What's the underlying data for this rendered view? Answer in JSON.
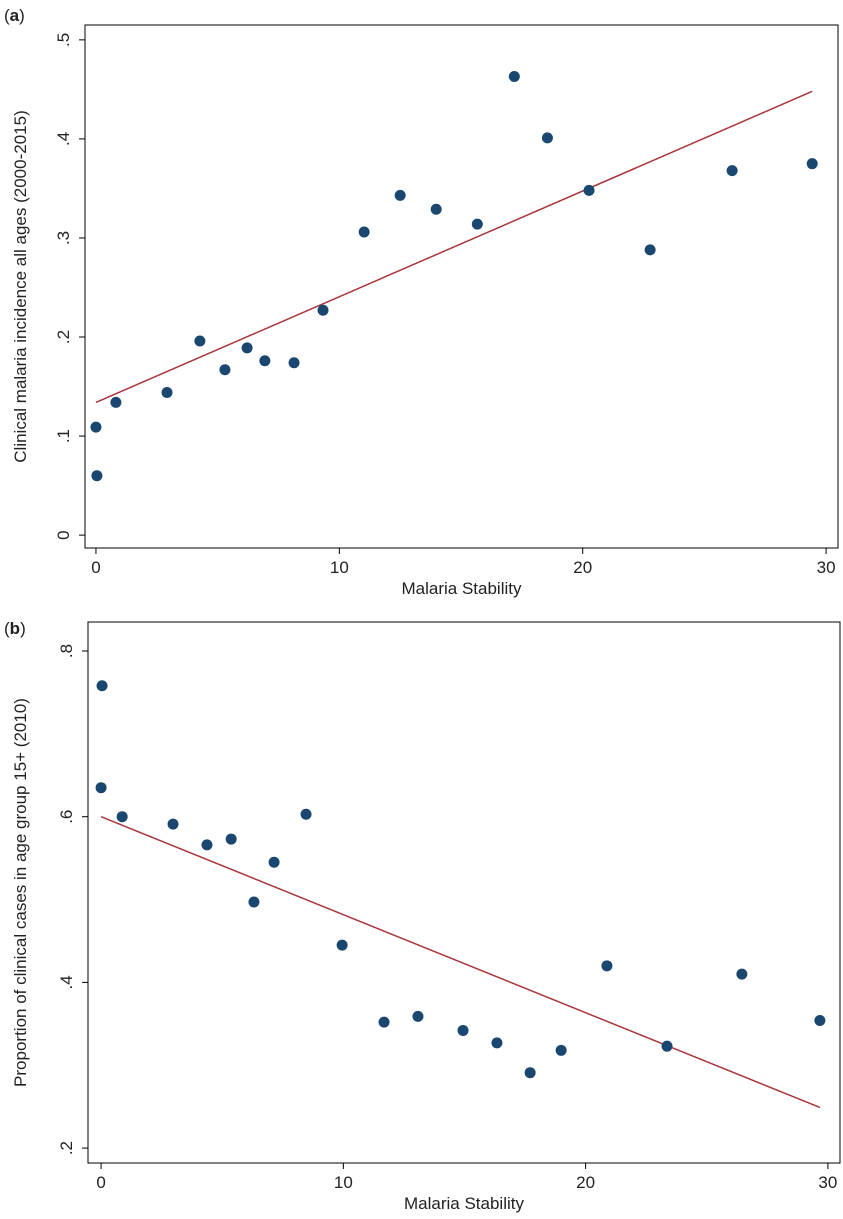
{
  "chart_data": [
    {
      "type": "scatter",
      "panel_label": "(a)",
      "x_label": "Malaria Stability",
      "y_label": "Clinical malaria incidence all ages (2000-2015)",
      "x": [
        0,
        0.04,
        0.82,
        2.92,
        4.27,
        5.3,
        6.21,
        6.94,
        8.14,
        9.33,
        11.02,
        12.5,
        13.98,
        15.67,
        17.19,
        18.55,
        20.26,
        22.77,
        26.14,
        29.43
      ],
      "y": [
        0.109,
        0.06,
        0.134,
        0.144,
        0.196,
        0.167,
        0.189,
        0.176,
        0.174,
        0.227,
        0.306,
        0.343,
        0.329,
        0.314,
        0.463,
        0.401,
        0.348,
        0.288,
        0.368,
        0.375
      ],
      "color": "#1a476f",
      "fit_line": {
        "x": [
          0,
          29.43
        ],
        "y": [
          0.134,
          0.448
        ],
        "color": "#a8353a"
      },
      "xlim": [
        -0.45,
        30.49
      ],
      "ylim": [
        -0.013,
        0.515
      ],
      "xticks": [
        0,
        10,
        20,
        30
      ],
      "yticks": [
        0,
        {
          "value": 0.1,
          "label": ".1"
        },
        {
          "value": 0.2,
          "label": ".2"
        },
        {
          "value": 0.3,
          "label": ".3"
        },
        {
          "value": 0.4,
          "label": ".4"
        },
        {
          "value": 0.5,
          "label": ".5"
        }
      ]
    },
    {
      "type": "scatter",
      "panel_label": "(b)",
      "x_label": "Malaria Stability",
      "y_label": "Proportion of clinical cases in age group 15+ (2010)",
      "x": [
        0.04,
        0,
        0.87,
        2.97,
        4.37,
        5.37,
        6.31,
        7.14,
        8.46,
        9.95,
        11.68,
        13.08,
        14.94,
        16.34,
        17.71,
        18.99,
        20.88,
        23.36,
        26.45,
        29.67
      ],
      "y": [
        0.758,
        0.635,
        0.6,
        0.591,
        0.566,
        0.573,
        0.497,
        0.545,
        0.603,
        0.445,
        0.352,
        0.359,
        0.342,
        0.327,
        0.291,
        0.318,
        0.42,
        0.323,
        0.41,
        0.354
      ],
      "color": "#1a476f",
      "fit_line": {
        "x": [
          0,
          29.67
        ],
        "y": [
          0.6,
          0.249
        ],
        "color": "#a8353a"
      },
      "xlim": [
        -0.54,
        30.5
      ],
      "ylim": [
        0.182,
        0.835
      ],
      "xticks": [
        0,
        10,
        20,
        30
      ],
      "yticks": [
        {
          "value": 0.2,
          "label": ".2"
        },
        {
          "value": 0.4,
          "label": ".4"
        },
        {
          "value": 0.6,
          "label": ".6"
        },
        {
          "value": 0.8,
          "label": ".8"
        }
      ]
    }
  ]
}
